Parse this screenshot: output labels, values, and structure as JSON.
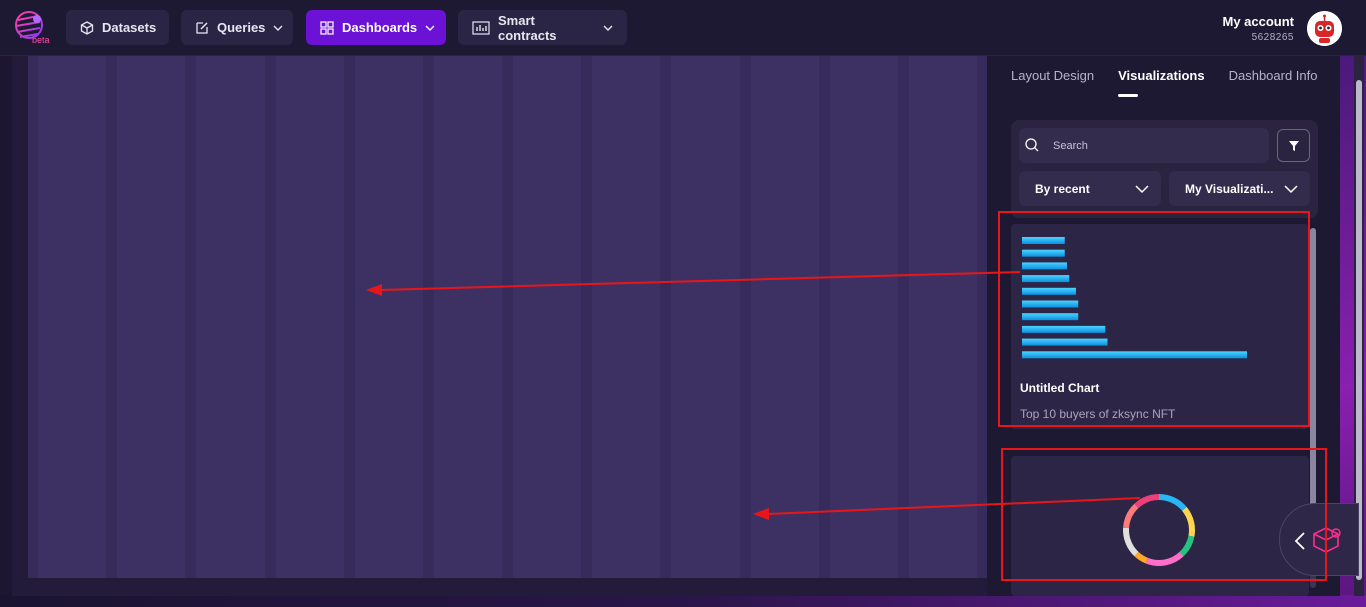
{
  "header": {
    "logo_badge": "beta",
    "nav": [
      {
        "label": "Datasets",
        "icon": "cube-icon",
        "dropdown": false
      },
      {
        "label": "Queries",
        "icon": "edit-icon",
        "dropdown": true
      },
      {
        "label": "Dashboards",
        "icon": "grid-icon",
        "dropdown": true,
        "active": true
      },
      {
        "label": "Smart contracts",
        "icon": "bar-chart-icon",
        "dropdown": true
      }
    ],
    "account": {
      "label": "My account",
      "id": "5628265"
    }
  },
  "panel": {
    "tabs": [
      {
        "label": "Layout Design",
        "active": false
      },
      {
        "label": "Visualizations",
        "active": true
      },
      {
        "label": "Dashboard Info",
        "active": false
      }
    ],
    "search": {
      "placeholder": "Search",
      "value": ""
    },
    "sort_select": {
      "value": "By recent"
    },
    "owner_select": {
      "value": "My Visualizati..."
    },
    "cards": [
      {
        "title": "Untitled Chart",
        "description": "Top 10 buyers of zksync NFT",
        "preview": "horizontal-bar",
        "bars": [
          0.19,
          0.19,
          0.2,
          0.21,
          0.24,
          0.25,
          0.25,
          0.37,
          0.38,
          1.0
        ]
      },
      {
        "title": "",
        "description": "",
        "preview": "donut",
        "slices": [
          {
            "value": 14,
            "color": "#29b6f6"
          },
          {
            "value": 14,
            "color": "#ffd54f"
          },
          {
            "value": 10,
            "color": "#26c281"
          },
          {
            "value": 18,
            "color": "#ff6ec7"
          },
          {
            "value": 6,
            "color": "#ffa726"
          },
          {
            "value": 14,
            "color": "#e0e0e0"
          },
          {
            "value": 12,
            "color": "#ff7b7b"
          },
          {
            "value": 12,
            "color": "#ec407a"
          }
        ]
      }
    ]
  },
  "colors": {
    "accent": "#6b12d6",
    "highlight": "#e8161a",
    "bar": "#12a8f0"
  }
}
